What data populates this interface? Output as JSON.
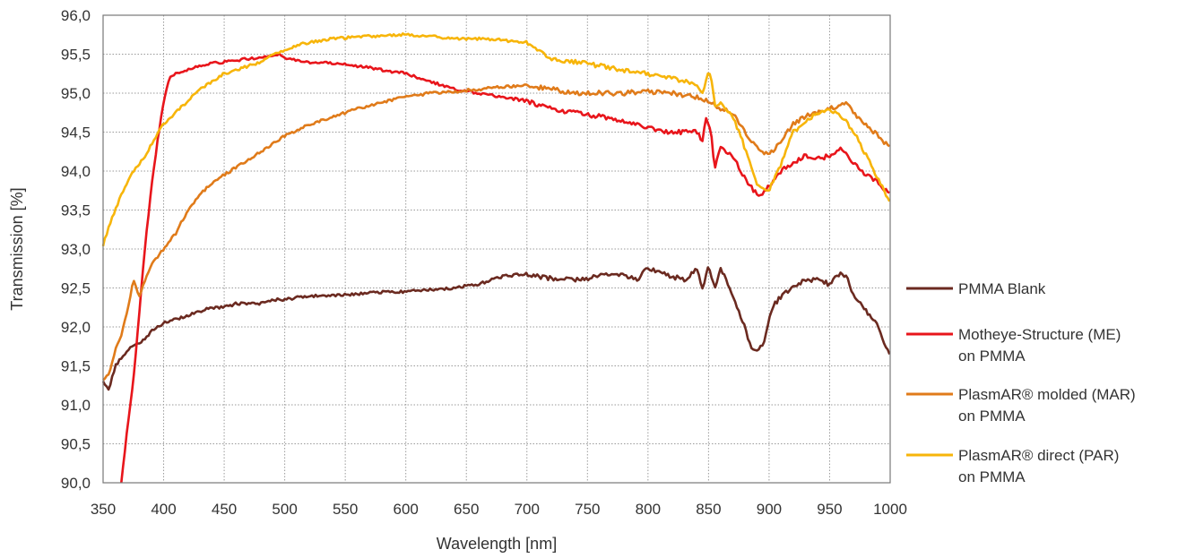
{
  "chart_data": {
    "type": "line",
    "xlabel": "Wavelength [nm]",
    "ylabel": "Transmission [%]",
    "xlim": [
      350,
      1000
    ],
    "ylim": [
      90.0,
      96.0
    ],
    "x_ticks": [
      "350",
      "400",
      "450",
      "500",
      "550",
      "600",
      "650",
      "700",
      "750",
      "800",
      "850",
      "900",
      "950",
      "1000"
    ],
    "y_ticks": [
      "90,0",
      "90,5",
      "91,0",
      "91,5",
      "92,0",
      "92,5",
      "93,0",
      "93,5",
      "94,0",
      "94,5",
      "95,0",
      "95,5",
      "96,0"
    ],
    "grid": true,
    "legend_position": "right",
    "series": [
      {
        "name": "PMMA Blank",
        "legend_lines": [
          "PMMA Blank"
        ],
        "color": "#6b2a20",
        "x": [
          350,
          355,
          360,
          365,
          370,
          375,
          380,
          385,
          390,
          400,
          410,
          420,
          430,
          440,
          450,
          460,
          470,
          480,
          490,
          500,
          520,
          540,
          560,
          580,
          600,
          620,
          640,
          660,
          680,
          700,
          720,
          740,
          760,
          780,
          790,
          800,
          810,
          820,
          830,
          840,
          845,
          850,
          855,
          860,
          870,
          880,
          885,
          890,
          895,
          900,
          905,
          910,
          920,
          930,
          940,
          950,
          960,
          965,
          970,
          980,
          990,
          1000
        ],
        "y": [
          91.3,
          91.2,
          91.5,
          91.6,
          91.7,
          91.75,
          91.8,
          91.85,
          91.95,
          92.05,
          92.1,
          92.15,
          92.2,
          92.25,
          92.25,
          92.3,
          92.3,
          92.3,
          92.35,
          92.35,
          92.4,
          92.4,
          92.42,
          92.45,
          92.45,
          92.48,
          92.5,
          92.55,
          92.65,
          92.68,
          92.62,
          92.6,
          92.65,
          92.68,
          92.6,
          92.75,
          92.7,
          92.65,
          92.6,
          92.75,
          92.5,
          92.8,
          92.5,
          92.75,
          92.4,
          92.0,
          91.75,
          91.7,
          91.75,
          92.1,
          92.3,
          92.4,
          92.5,
          92.6,
          92.6,
          92.55,
          92.7,
          92.6,
          92.4,
          92.2,
          92.0,
          91.6
        ]
      },
      {
        "name": "Motheye-Structure (ME) on PMMA",
        "legend_lines": [
          "Motheye-Structure (ME)",
          "on PMMA"
        ],
        "color": "#e8151b",
        "x": [
          365,
          370,
          375,
          380,
          385,
          390,
          395,
          400,
          405,
          410,
          420,
          430,
          440,
          450,
          460,
          470,
          480,
          490,
          495,
          500,
          520,
          540,
          560,
          580,
          600,
          620,
          640,
          660,
          680,
          700,
          720,
          740,
          760,
          780,
          800,
          820,
          840,
          845,
          848,
          852,
          855,
          860,
          870,
          880,
          890,
          895,
          900,
          910,
          920,
          930,
          940,
          950,
          960,
          970,
          980,
          990,
          1000
        ],
        "y": [
          90.0,
          90.7,
          91.3,
          92.2,
          93.1,
          93.8,
          94.4,
          94.9,
          95.2,
          95.25,
          95.3,
          95.35,
          95.38,
          95.4,
          95.42,
          95.44,
          95.45,
          95.47,
          95.5,
          95.45,
          95.4,
          95.38,
          95.35,
          95.3,
          95.25,
          95.15,
          95.05,
          95.0,
          94.95,
          94.9,
          94.8,
          94.75,
          94.7,
          94.65,
          94.55,
          94.5,
          94.5,
          94.4,
          94.7,
          94.5,
          94.05,
          94.3,
          94.2,
          93.9,
          93.7,
          93.72,
          93.8,
          94.0,
          94.1,
          94.2,
          94.15,
          94.2,
          94.3,
          94.1,
          93.95,
          93.85,
          93.7
        ]
      },
      {
        "name": "PlasmAR® molded (MAR) on PMMA",
        "legend_lines": [
          "PlasmAR® molded (MAR)",
          "on PMMA"
        ],
        "color": "#e07b1a",
        "x": [
          350,
          355,
          360,
          365,
          370,
          375,
          380,
          385,
          390,
          400,
          410,
          420,
          430,
          440,
          450,
          460,
          470,
          480,
          490,
          500,
          520,
          540,
          560,
          580,
          600,
          620,
          640,
          660,
          680,
          700,
          720,
          740,
          760,
          780,
          800,
          820,
          840,
          850,
          855,
          860,
          870,
          880,
          890,
          895,
          900,
          910,
          920,
          930,
          940,
          950,
          960,
          965,
          970,
          980,
          990,
          1000
        ],
        "y": [
          91.3,
          91.4,
          91.7,
          91.9,
          92.2,
          92.6,
          92.4,
          92.6,
          92.8,
          93.0,
          93.2,
          93.5,
          93.7,
          93.85,
          93.95,
          94.05,
          94.15,
          94.25,
          94.35,
          94.45,
          94.6,
          94.7,
          94.8,
          94.88,
          94.95,
          95.0,
          95.02,
          95.05,
          95.08,
          95.1,
          95.05,
          95.0,
          95.0,
          95.0,
          95.02,
          95.0,
          94.95,
          94.9,
          94.85,
          94.8,
          94.75,
          94.5,
          94.3,
          94.25,
          94.2,
          94.4,
          94.6,
          94.7,
          94.75,
          94.8,
          94.85,
          94.88,
          94.75,
          94.6,
          94.45,
          94.3
        ]
      },
      {
        "name": "PlasmAR® direct (PAR) on PMMA",
        "legend_lines": [
          "PlasmAR® direct (PAR)",
          "on PMMA"
        ],
        "color": "#f7b50a",
        "x": [
          350,
          355,
          360,
          365,
          370,
          375,
          380,
          385,
          390,
          400,
          410,
          420,
          430,
          440,
          450,
          460,
          470,
          480,
          490,
          500,
          510,
          520,
          540,
          560,
          580,
          600,
          620,
          640,
          660,
          680,
          700,
          710,
          720,
          740,
          760,
          780,
          800,
          820,
          840,
          845,
          850,
          853,
          856,
          860,
          870,
          880,
          890,
          895,
          900,
          910,
          920,
          930,
          940,
          950,
          960,
          970,
          980,
          990,
          1000
        ],
        "y": [
          93.05,
          93.3,
          93.5,
          93.7,
          93.85,
          94.0,
          94.1,
          94.2,
          94.35,
          94.6,
          94.75,
          94.9,
          95.05,
          95.15,
          95.25,
          95.3,
          95.35,
          95.4,
          95.5,
          95.55,
          95.62,
          95.65,
          95.7,
          95.72,
          95.74,
          95.75,
          95.73,
          95.7,
          95.7,
          95.68,
          95.65,
          95.55,
          95.45,
          95.4,
          95.35,
          95.3,
          95.25,
          95.2,
          95.1,
          95.0,
          95.3,
          95.1,
          94.8,
          94.9,
          94.7,
          94.3,
          93.8,
          93.75,
          93.75,
          94.1,
          94.5,
          94.65,
          94.75,
          94.8,
          94.7,
          94.5,
          94.2,
          93.9,
          93.6
        ]
      }
    ]
  }
}
